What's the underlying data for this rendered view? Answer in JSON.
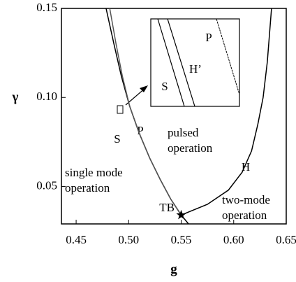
{
  "chart_data": {
    "type": "line",
    "xlabel": "g",
    "ylabel": "γ",
    "xlim": [
      0.436,
      0.65
    ],
    "ylim": [
      0.029,
      0.15
    ],
    "xticks": [
      {
        "value": 0.45,
        "label": "0.45"
      },
      {
        "value": 0.5,
        "label": "0.50"
      },
      {
        "value": 0.55,
        "label": "0.55"
      },
      {
        "value": 0.6,
        "label": "0.60"
      },
      {
        "value": 0.65,
        "label": "0.65"
      }
    ],
    "yticks": [
      {
        "value": 0.05,
        "label": "0.05"
      },
      {
        "value": 0.1,
        "label": "0.10"
      },
      {
        "value": 0.15,
        "label": "0.15"
      }
    ],
    "series": [
      {
        "name": "S",
        "color": "#000000",
        "x": [
          0.4785,
          0.486,
          0.493,
          0.501,
          0.51,
          0.52,
          0.53,
          0.54,
          0.55,
          0.557
        ],
        "values": [
          0.15,
          0.13,
          0.112,
          0.095,
          0.08,
          0.066,
          0.054,
          0.043,
          0.034,
          0.029
        ]
      },
      {
        "name": "P",
        "color": "#555555",
        "x": [
          0.482,
          0.488,
          0.494,
          0.501,
          0.51,
          0.52,
          0.53,
          0.54,
          0.55
        ],
        "values": [
          0.15,
          0.13,
          0.112,
          0.095,
          0.08,
          0.066,
          0.054,
          0.043,
          0.034
        ]
      },
      {
        "name": "H",
        "color": "#000000",
        "x": [
          0.55,
          0.575,
          0.595,
          0.608,
          0.617,
          0.623,
          0.628,
          0.632,
          0.636
        ],
        "values": [
          0.034,
          0.04,
          0.048,
          0.058,
          0.07,
          0.085,
          0.1,
          0.12,
          0.15
        ]
      }
    ],
    "points": [
      {
        "label": "TB",
        "x": 0.55,
        "y": 0.034
      }
    ],
    "regions": [
      [
        "pulsed",
        "operation"
      ],
      [
        "single mode",
        "operation"
      ],
      [
        "two-mode",
        "operation"
      ]
    ],
    "inset_labels": [
      "S",
      "H’",
      "P"
    ]
  }
}
